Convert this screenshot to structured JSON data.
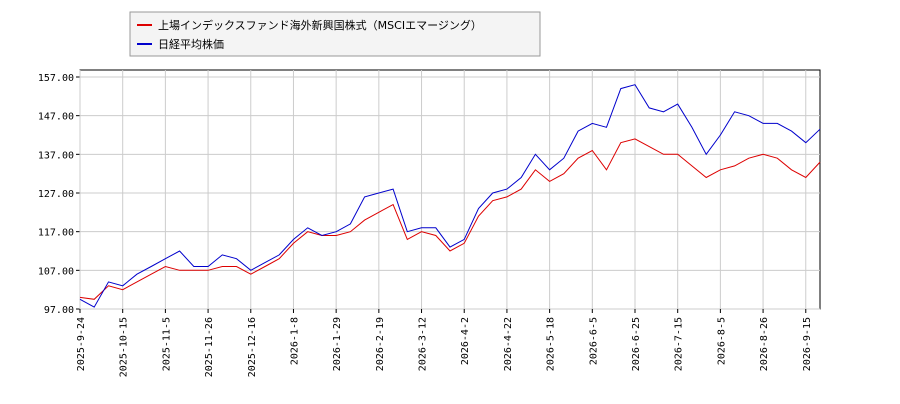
{
  "chart_data": {
    "type": "line",
    "categories": [
      "2025-9-24",
      null,
      null,
      "2025-10-15",
      null,
      null,
      "2025-11-5",
      null,
      null,
      "2025-11-26",
      null,
      null,
      "2025-12-16",
      null,
      null,
      "2026-1-8",
      null,
      null,
      "2026-1-29",
      null,
      null,
      "2026-2-19",
      null,
      null,
      "2026-3-12",
      null,
      null,
      "2026-4-2",
      null,
      null,
      "2026-4-22",
      null,
      null,
      "2026-5-18",
      null,
      null,
      "2026-6-5",
      null,
      null,
      "2026-6-25",
      null,
      null,
      "2026-7-15",
      null,
      null,
      "2026-8-5",
      null,
      null,
      "2026-8-26",
      null,
      null,
      "2026-9-15",
      null
    ],
    "series": [
      {
        "name": "上場インデックスファンド海外新興国株式（MSCIエマージング）",
        "color": "#dd0000",
        "values": [
          100,
          99.5,
          103,
          102,
          104,
          106,
          108,
          107,
          107,
          107,
          108,
          108,
          106,
          108,
          110,
          114,
          117,
          116,
          116,
          117,
          120,
          122,
          124,
          115,
          117,
          116,
          112,
          114,
          121,
          125,
          126,
          128,
          133,
          130,
          132,
          136,
          138,
          133,
          140,
          141,
          139,
          137,
          137,
          134,
          131,
          133,
          134,
          136,
          137,
          136,
          133,
          131,
          135
        ]
      },
      {
        "name": "日経平均株価",
        "color": "#0000cc",
        "values": [
          99.5,
          97.5,
          104,
          103,
          106,
          108,
          110,
          112,
          108,
          108,
          111,
          110,
          107,
          109,
          111,
          115,
          118,
          116,
          117,
          119,
          126,
          127,
          128,
          117,
          118,
          118,
          113,
          115,
          123,
          127,
          128,
          131,
          137,
          133,
          136,
          143,
          145,
          144,
          154,
          155,
          149,
          148,
          150,
          144,
          137,
          142,
          148,
          147,
          145,
          145,
          143,
          140,
          143.5
        ]
      }
    ],
    "ylim": [
      97,
      157
    ],
    "yticks": [
      {
        "value": 97,
        "label": "97.00"
      },
      {
        "value": 107,
        "label": "107.00"
      },
      {
        "value": 117,
        "label": "117.00"
      },
      {
        "value": 127,
        "label": "127.00"
      },
      {
        "value": 137,
        "label": "137.00"
      },
      {
        "value": 147,
        "label": "147.00"
      },
      {
        "value": 157,
        "label": "157.00"
      }
    ],
    "grid": true
  }
}
